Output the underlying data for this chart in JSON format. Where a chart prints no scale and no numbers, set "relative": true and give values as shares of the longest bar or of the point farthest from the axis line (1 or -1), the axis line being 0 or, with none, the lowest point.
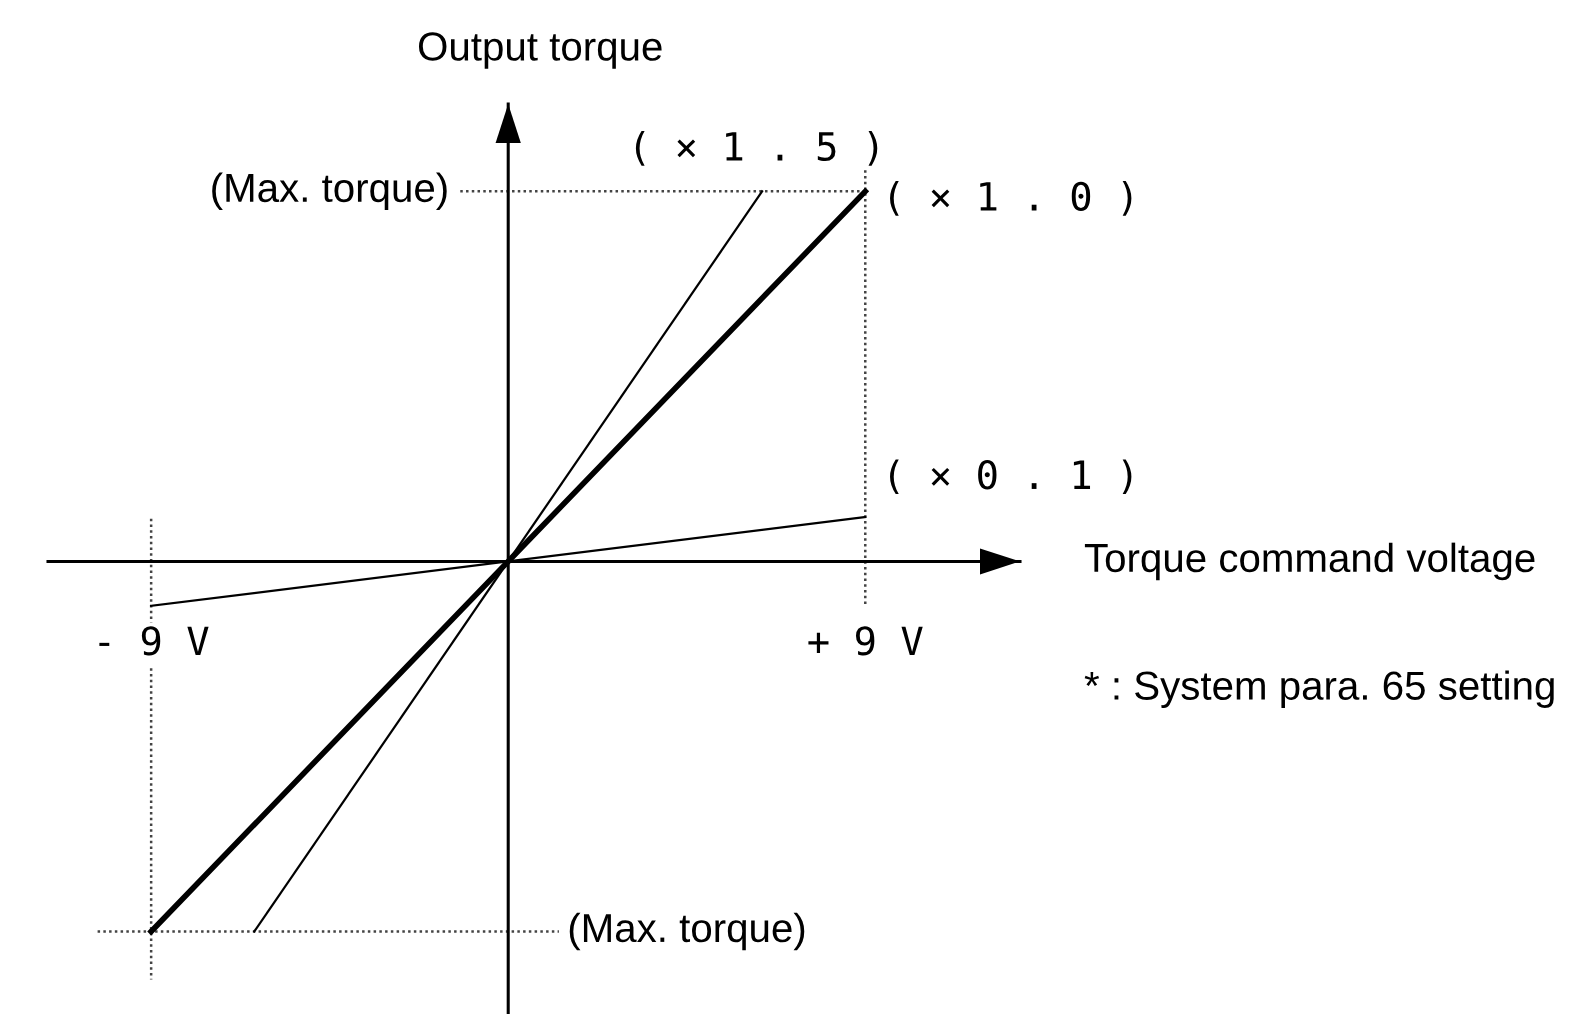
{
  "chart_data": {
    "type": "line",
    "xlabel": "Torque command voltage",
    "ylabel": "Output torque",
    "relative": true,
    "xlim": [
      -11.6,
      12.9
    ],
    "xticks": [
      {
        "value": -9,
        "label": "- 9 V"
      },
      {
        "value": 9,
        "label": "+ 9 V"
      }
    ],
    "series": [
      {
        "name": "( × 1 . 5 )",
        "color": "#000000",
        "x": [
          -6.4,
          6.4
        ],
        "values": [
          -1,
          1
        ]
      },
      {
        "name": "( × 1 . 0 )",
        "color": "#000000",
        "x": [
          -9,
          9
        ],
        "values": [
          -1,
          1
        ]
      },
      {
        "name": "( × 0 . 1 )",
        "color": "#000000",
        "x": [
          -9,
          9
        ],
        "values": [
          -0.12,
          0.12
        ]
      }
    ],
    "ref_lines": [
      {
        "axis": "y",
        "value": 1,
        "label": "(Max. torque)",
        "line_style": "dotted",
        "color": "#444444"
      },
      {
        "axis": "y",
        "value": -1,
        "label": "(Max. torque)",
        "line_style": "dotted",
        "color": "#444444"
      },
      {
        "axis": "x",
        "value": -9,
        "line_style": "dotted",
        "color": "#444444"
      },
      {
        "axis": "x",
        "value": 9,
        "line_style": "dotted",
        "color": "#444444"
      }
    ],
    "annotations": [
      "* : System para. 65 setting"
    ]
  }
}
